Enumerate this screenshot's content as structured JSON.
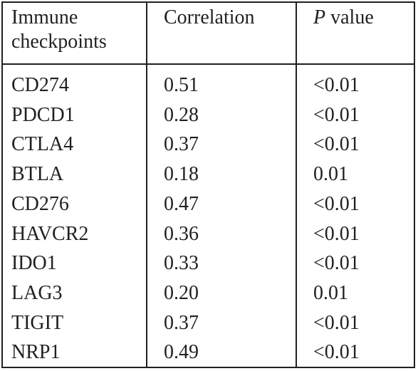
{
  "table": {
    "headers": {
      "checkpoint_line1": "Immune",
      "checkpoint_line2": "checkpoints",
      "correlation": "Correlation",
      "pvalue_italic": "P",
      "pvalue_rest": " value"
    },
    "rows": [
      {
        "checkpoint": "CD274",
        "correlation": "0.51",
        "pvalue": "<0.01"
      },
      {
        "checkpoint": "PDCD1",
        "correlation": "0.28",
        "pvalue": "<0.01"
      },
      {
        "checkpoint": "CTLA4",
        "correlation": "0.37",
        "pvalue": "<0.01"
      },
      {
        "checkpoint": "BTLA",
        "correlation": "0.18",
        "pvalue": "0.01"
      },
      {
        "checkpoint": "CD276",
        "correlation": "0.47",
        "pvalue": "<0.01"
      },
      {
        "checkpoint": "HAVCR2",
        "correlation": "0.36",
        "pvalue": "<0.01"
      },
      {
        "checkpoint": "IDO1",
        "correlation": "0.33",
        "pvalue": "<0.01"
      },
      {
        "checkpoint": "LAG3",
        "correlation": "0.20",
        "pvalue": "0.01"
      },
      {
        "checkpoint": "TIGIT",
        "correlation": "0.37",
        "pvalue": "<0.01"
      },
      {
        "checkpoint": "NRP1",
        "correlation": "0.49",
        "pvalue": "<0.01"
      }
    ]
  }
}
